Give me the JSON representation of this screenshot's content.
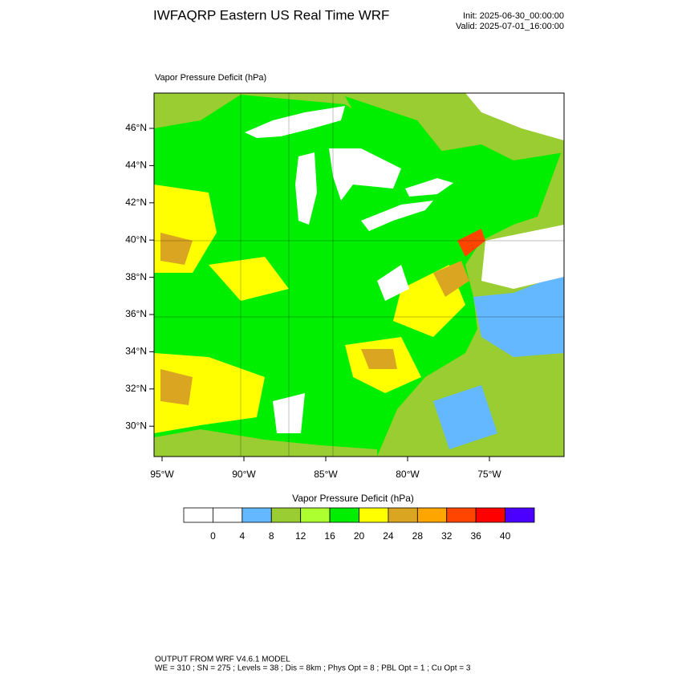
{
  "header": {
    "title": "IWFAQRP Eastern US Real Time WRF",
    "init": "Init: 2025-06-30_00:00:00",
    "valid": "Valid: 2025-07-01_16:00:00"
  },
  "map": {
    "field_label": "Vapor Pressure Deficit   (hPa)",
    "lat_labels": [
      "46°N",
      "44°N",
      "42°N",
      "40°N",
      "38°N",
      "36°N",
      "34°N",
      "32°N",
      "30°N"
    ],
    "lon_labels": [
      "95°W",
      "90°W",
      "85°W",
      "80°W",
      "75°W"
    ]
  },
  "colorbar": {
    "title": "Vapor Pressure Deficit  (hPa)",
    "colors": [
      "#ffffff",
      "#ffffff",
      "#63b8ff",
      "#9acd32",
      "#adff2f",
      "#00ee00",
      "#ffff00",
      "#daa520",
      "#ffa500",
      "#ff4500",
      "#ff0000",
      "#4b00ff"
    ],
    "labels": [
      "0",
      "4",
      "8",
      "12",
      "16",
      "20",
      "24",
      "28",
      "32",
      "36",
      "40"
    ]
  },
  "footer": {
    "line1": "OUTPUT FROM WRF V4.6.1 MODEL",
    "line2": "WE = 310 ; SN = 275 ; Levels = 38 ; Dis = 8km ; Phys Opt = 8 ; PBL Opt = 1 ; Cu Opt = 3"
  }
}
